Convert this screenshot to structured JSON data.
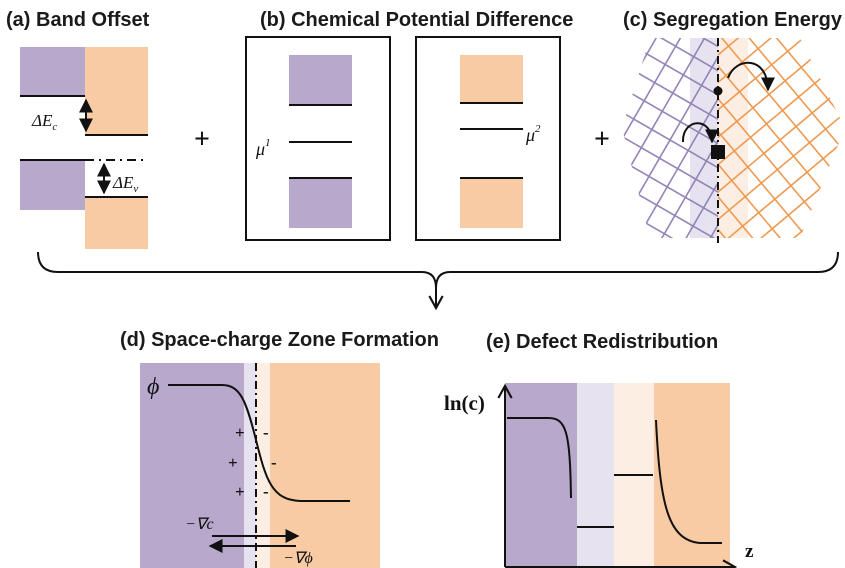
{
  "colors": {
    "purple": "#b8a8cc",
    "orange": "#f8cba4",
    "purple_light": "#e6e2ef",
    "orange_light": "#fdeee3",
    "purple_grid": "#9484b8",
    "orange_grid": "#ee9a52",
    "line": "#111111"
  },
  "panels": {
    "a": {
      "title": "(a) Band Offset",
      "delta_ec": "ΔE",
      "delta_ec_sub": "c",
      "delta_ev": "ΔE",
      "delta_ev_sub": "v"
    },
    "b": {
      "title": "(b) Chemical Potential Difference",
      "mu1": "μ",
      "mu1_sup": "1",
      "mu2": "μ",
      "mu2_sup": "2"
    },
    "c": {
      "title": "(c) Segregation Energy"
    },
    "d": {
      "title": "(d) Space-charge Zone Formation",
      "phi": "ϕ",
      "grad_c": "−∇c",
      "grad_phi": "−∇ϕ",
      "plus": "+",
      "minus": "-"
    },
    "e": {
      "title": "(e) Defect Redistribution",
      "y_axis": "ln(c)",
      "x_axis": "z"
    }
  },
  "operators": {
    "plus": "+"
  }
}
